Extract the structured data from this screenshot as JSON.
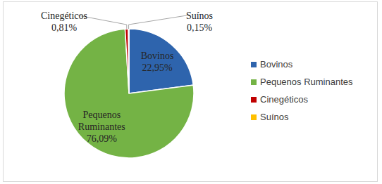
{
  "chart_data": {
    "type": "pie",
    "categories": [
      "Bovinos",
      "Pequenos Ruminantes",
      "Cinegéticos",
      "Suínos"
    ],
    "values": [
      22.95,
      76.09,
      0.81,
      0.15
    ],
    "value_labels": [
      "22,95%",
      "76,09%",
      "0,81%",
      "0,15%"
    ],
    "colors": [
      "#2e64ad",
      "#74b345",
      "#c00000",
      "#ffc000"
    ],
    "data_labels": true,
    "legend": "right"
  }
}
